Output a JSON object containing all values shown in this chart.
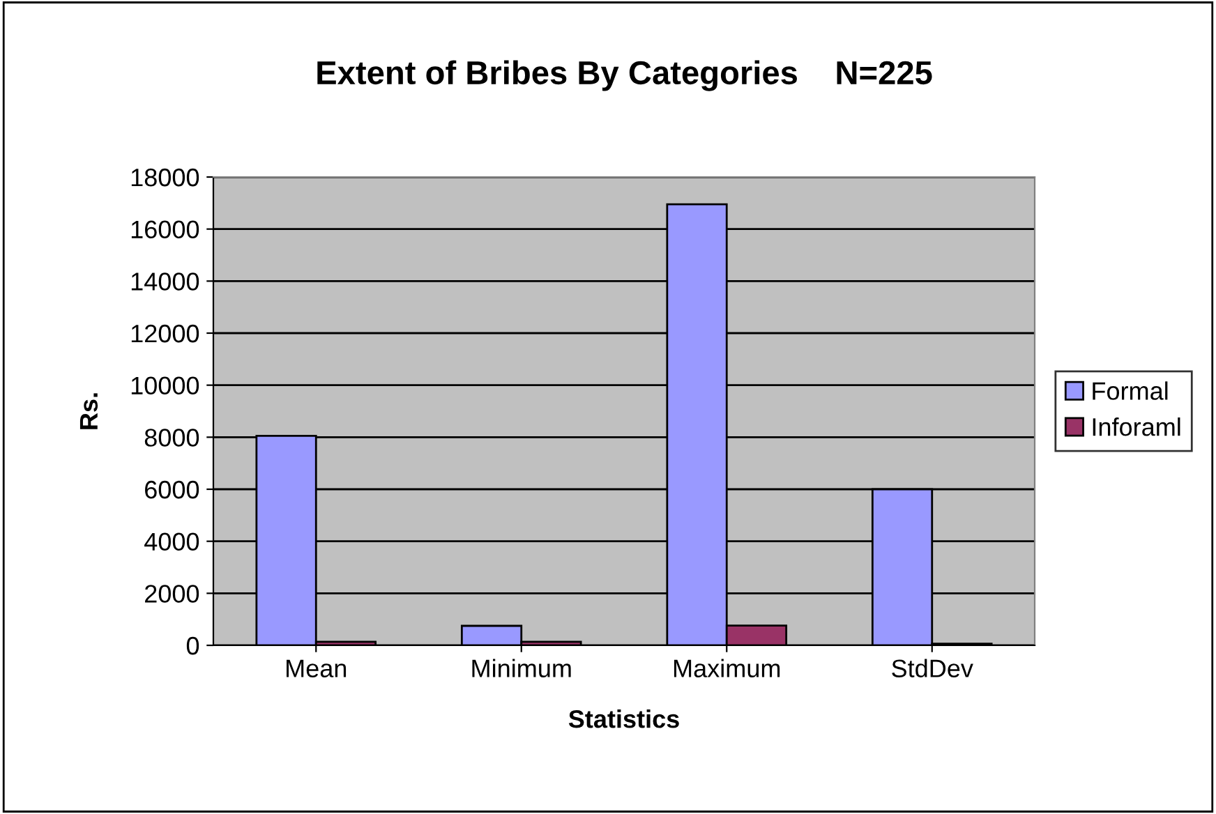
{
  "chart_data": {
    "type": "bar",
    "title": "Extent of Bribes By Categories    N=225",
    "xlabel": "Statistics",
    "ylabel": "Rs.",
    "categories": [
      "Mean",
      "Minimum",
      "Maximum",
      "StdDev"
    ],
    "series": [
      {
        "name": "Formal",
        "color": "#9999ff",
        "values": [
          8050,
          750,
          16950,
          6000
        ]
      },
      {
        "name": "Inforaml",
        "color": "#993366",
        "values": [
          140,
          140,
          760,
          60
        ]
      }
    ],
    "ylim": [
      0,
      18000
    ],
    "yticks": [
      0,
      2000,
      4000,
      6000,
      8000,
      10000,
      12000,
      14000,
      16000,
      18000
    ],
    "grid": "y",
    "legend": "right"
  }
}
